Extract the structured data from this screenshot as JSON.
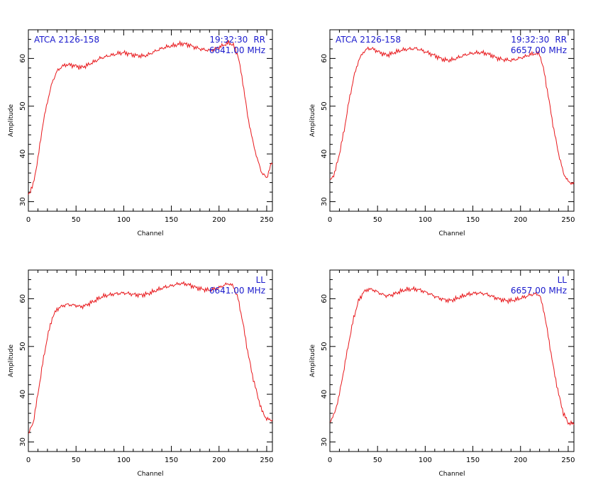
{
  "panels": [
    {
      "source": "ATCA 2126-158",
      "time": "19:32:30",
      "pol": "RR",
      "freq": "6641.00 MHz"
    },
    {
      "source": "ATCA 2126-158",
      "time": "19:32:30",
      "pol": "RR",
      "freq": "6657.00 MHz"
    },
    {
      "source": "",
      "time": "",
      "pol": "LL",
      "freq": "6641.00 MHz"
    },
    {
      "source": "",
      "time": "",
      "pol": "LL",
      "freq": "6657.00 MHz"
    }
  ],
  "colors": {
    "line": "#e8181c",
    "annotation": "#1a1acc",
    "axes": "#000000"
  },
  "chart_data": [
    {
      "type": "line",
      "xlabel": "Channel",
      "ylabel": "Amplitude",
      "xlim": [
        0,
        256
      ],
      "ylim": [
        28,
        66
      ],
      "xticks": [
        0,
        50,
        100,
        150,
        200,
        250
      ],
      "yticks": [
        30,
        40,
        50,
        60
      ],
      "annotation_left": "ATCA 2126-158",
      "annotation_right": "19:32:30  RR",
      "annotation_freq": "6641.00 MHz",
      "series": [
        {
          "x": [
            0,
            5,
            10,
            15,
            20,
            25,
            30,
            35,
            40,
            45,
            50,
            55,
            60,
            65,
            70,
            75,
            80,
            85,
            90,
            95,
            100,
            105,
            110,
            115,
            120,
            125,
            130,
            135,
            140,
            145,
            150,
            155,
            160,
            165,
            170,
            175,
            180,
            185,
            190,
            195,
            200,
            205,
            210,
            215,
            220,
            225,
            230,
            235,
            240,
            245,
            250,
            255
          ],
          "values": [
            31.5,
            33.5,
            39,
            46,
            51,
            55,
            57.3,
            58.3,
            58.7,
            58.6,
            58.4,
            58.1,
            58.4,
            58.9,
            59.4,
            60,
            60.3,
            60.6,
            60.8,
            61.1,
            61.2,
            61,
            60.7,
            60.6,
            60.5,
            60.7,
            61.2,
            61.7,
            62.1,
            62.4,
            62.6,
            62.8,
            63.1,
            63,
            62.7,
            62.3,
            62,
            61.8,
            61.7,
            61.9,
            62.3,
            62.8,
            63.3,
            62.8,
            60.5,
            55,
            48,
            43,
            39,
            36,
            35,
            38
          ]
        }
      ]
    },
    {
      "type": "line",
      "xlabel": "Channel",
      "ylabel": "Amplitude",
      "xlim": [
        0,
        256
      ],
      "ylim": [
        28,
        66
      ],
      "xticks": [
        0,
        50,
        100,
        150,
        200,
        250
      ],
      "yticks": [
        30,
        40,
        50,
        60
      ],
      "annotation_left": "ATCA 2126-158",
      "annotation_right": "19:32:30  RR",
      "annotation_freq": "6657.00 MHz",
      "series": [
        {
          "x": [
            0,
            5,
            10,
            15,
            20,
            25,
            30,
            35,
            40,
            45,
            50,
            55,
            60,
            65,
            70,
            75,
            80,
            85,
            90,
            95,
            100,
            105,
            110,
            115,
            120,
            125,
            130,
            135,
            140,
            145,
            150,
            155,
            160,
            165,
            170,
            175,
            180,
            185,
            190,
            195,
            200,
            205,
            210,
            215,
            220,
            225,
            230,
            235,
            240,
            245,
            250,
            255
          ],
          "values": [
            34.3,
            36,
            40,
            45,
            51,
            56,
            59.5,
            61.3,
            62.1,
            62,
            61.5,
            61,
            60.7,
            61,
            61.4,
            61.7,
            61.9,
            62,
            62.1,
            61.8,
            61.4,
            61,
            60.6,
            60.1,
            59.7,
            59.6,
            59.8,
            60.2,
            60.6,
            60.9,
            61.1,
            61.2,
            61.2,
            61,
            60.6,
            60.1,
            59.8,
            59.7,
            59.6,
            59.8,
            60.1,
            60.4,
            60.8,
            61,
            61,
            57,
            51,
            45,
            40,
            36,
            34.2,
            33.8
          ]
        }
      ]
    },
    {
      "type": "line",
      "xlabel": "Channel",
      "ylabel": "Amplitude",
      "xlim": [
        0,
        256
      ],
      "ylim": [
        28,
        66
      ],
      "xticks": [
        0,
        50,
        100,
        150,
        200,
        250
      ],
      "yticks": [
        30,
        40,
        50,
        60
      ],
      "annotation_left": "",
      "annotation_right": "LL",
      "annotation_freq": "6641.00 MHz",
      "series": [
        {
          "x": [
            0,
            5,
            10,
            15,
            20,
            25,
            30,
            35,
            40,
            45,
            50,
            55,
            60,
            65,
            70,
            75,
            80,
            85,
            90,
            95,
            100,
            105,
            110,
            115,
            120,
            125,
            130,
            135,
            140,
            145,
            150,
            155,
            160,
            165,
            170,
            175,
            180,
            185,
            190,
            195,
            200,
            205,
            210,
            215,
            220,
            225,
            230,
            235,
            240,
            245,
            250,
            255
          ],
          "values": [
            31.7,
            34,
            40,
            46.5,
            52,
            56,
            57.8,
            58.4,
            58.8,
            58.7,
            58.6,
            58.3,
            58.6,
            59.1,
            59.6,
            60.2,
            60.6,
            60.8,
            61,
            61.1,
            61.2,
            61.1,
            60.9,
            60.8,
            60.8,
            61,
            61.4,
            61.8,
            62.2,
            62.5,
            62.7,
            63,
            63.2,
            63.1,
            62.8,
            62.4,
            62.1,
            61.9,
            61.8,
            62,
            62.3,
            62.8,
            63.2,
            62.6,
            60,
            55,
            49,
            44,
            40,
            36.5,
            34.8,
            34.6
          ]
        }
      ]
    },
    {
      "type": "line",
      "xlabel": "Channel",
      "ylabel": "Amplitude",
      "xlim": [
        0,
        256
      ],
      "ylim": [
        28,
        66
      ],
      "xticks": [
        0,
        50,
        100,
        150,
        200,
        250
      ],
      "yticks": [
        30,
        40,
        50,
        60
      ],
      "annotation_left": "",
      "annotation_right": "LL",
      "annotation_freq": "6657.00 MHz",
      "series": [
        {
          "x": [
            0,
            5,
            10,
            15,
            20,
            25,
            30,
            35,
            40,
            45,
            50,
            55,
            60,
            65,
            70,
            75,
            80,
            85,
            90,
            95,
            100,
            105,
            110,
            115,
            120,
            125,
            130,
            135,
            140,
            145,
            150,
            155,
            160,
            165,
            170,
            175,
            180,
            185,
            190,
            195,
            200,
            205,
            210,
            215,
            220,
            225,
            230,
            235,
            240,
            245,
            250,
            255
          ],
          "values": [
            34.2,
            36,
            40,
            45.5,
            51,
            56,
            59.5,
            61.3,
            62,
            61.9,
            61.4,
            60.9,
            60.6,
            60.8,
            61.2,
            61.6,
            61.9,
            62,
            62,
            61.8,
            61.4,
            61,
            60.5,
            60.1,
            59.8,
            59.6,
            59.8,
            60.2,
            60.6,
            60.9,
            61.1,
            61.2,
            61.1,
            60.9,
            60.5,
            60.1,
            59.8,
            59.6,
            59.6,
            59.8,
            60.1,
            60.4,
            60.8,
            61,
            60.8,
            57,
            51,
            45,
            40,
            36,
            34,
            33.8
          ]
        }
      ]
    }
  ]
}
